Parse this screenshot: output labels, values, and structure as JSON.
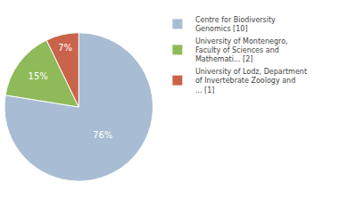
{
  "chart_data": {
    "type": "pie",
    "categories": [
      "Centre for Biodiversity\nGenomics [10]",
      "University of Montenegro,\nFaculty of Sciences and\nMathemati... [2]",
      "University of Lodz, Department\nof Invertebrate Zoology and\n... [1]"
    ],
    "values": [
      76,
      15,
      7
    ],
    "value_labels": [
      "76%",
      "15%",
      "7%"
    ],
    "colors": [
      "#a8bcd4",
      "#8fba5a",
      "#c9644a"
    ],
    "data_labels": true,
    "legend": "right"
  }
}
